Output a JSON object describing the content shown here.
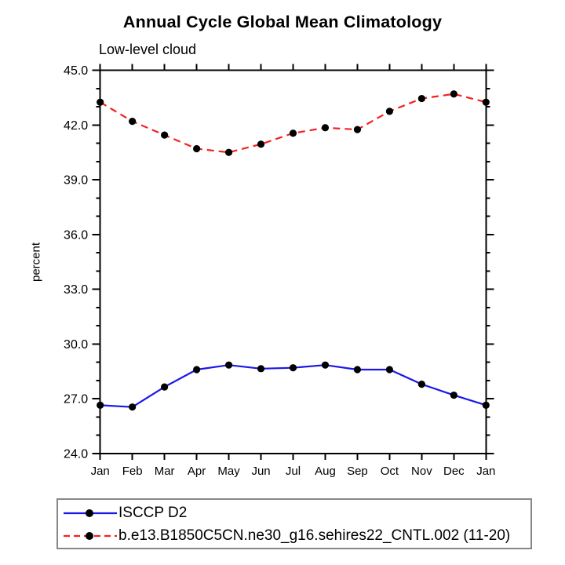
{
  "title": "Annual Cycle Global Mean Climatology",
  "chart_data": {
    "type": "line",
    "title": "Annual Cycle Global Mean Climatology",
    "subtitle": "Low-level cloud",
    "ylabel": "percent",
    "xlabel": "",
    "x_categories": [
      "Jan",
      "Feb",
      "Mar",
      "Apr",
      "May",
      "Jun",
      "Jul",
      "Aug",
      "Sep",
      "Oct",
      "Nov",
      "Dec",
      "Jan"
    ],
    "ylim": [
      24.0,
      45.0
    ],
    "y_major_step": 3,
    "y_minor_step": 1,
    "y_major_tick_labels": [
      "24.0",
      "27.0",
      "30.0",
      "33.0",
      "36.0",
      "39.0",
      "42.0",
      "45.0"
    ],
    "grid": false,
    "legend_position": "bottom-left",
    "axis_color": "#000000",
    "marker_shape": "filled-circle",
    "series": [
      {
        "name": "ISCCP D2",
        "color": "#1a17e8",
        "style": "solid",
        "marker_color": "#000000",
        "values": [
          26.65,
          26.55,
          27.65,
          28.6,
          28.85,
          28.65,
          28.7,
          28.85,
          28.6,
          28.6,
          27.8,
          27.2,
          26.65
        ]
      },
      {
        "name": "b.e13.B1850C5CN.ne30_g16.sehires22_CNTL.002 (11-20)",
        "color": "#f52020",
        "style": "dashed",
        "marker_color": "#000000",
        "values": [
          43.25,
          42.2,
          41.45,
          40.7,
          40.5,
          40.95,
          41.55,
          41.85,
          41.75,
          42.75,
          43.45,
          43.7,
          43.25
        ]
      }
    ]
  }
}
